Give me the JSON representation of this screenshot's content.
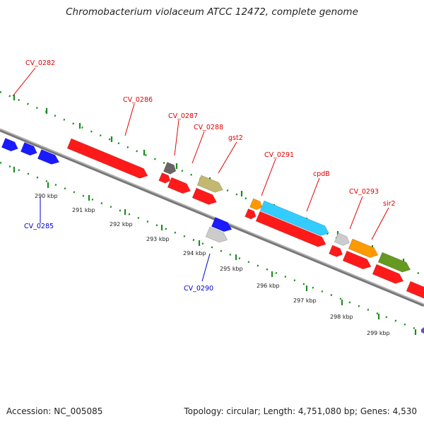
{
  "title": "Chromobacterium violaceum ATCC 12472, complete genome",
  "footer": {
    "accession": "Accession: NC_005085",
    "topology": "Topology: circular; Length: 4,751,080 bp; Genes: 4,530"
  },
  "colors": {
    "backbone": "#8c8c8c",
    "tick": "#1e8c1e",
    "forward_label": "#e00000",
    "reverse_label": "#0000cc",
    "red": "#ff1a1a",
    "blue": "#1a1aff",
    "orange": "#ff9900",
    "cyan": "#33ccff",
    "olive": "#669922",
    "khaki": "#c2b870",
    "lightgray": "#cccccc",
    "darkgray": "#666666"
  },
  "scale": {
    "unit": "kbp",
    "tick_labels": [
      "290 kbp",
      "291 kbp",
      "292 kbp",
      "293 kbp",
      "294 kbp",
      "295 kbp",
      "296 kbp",
      "297 kbp",
      "298 kbp",
      "299 kbp"
    ]
  },
  "forward_labels": [
    "CV_0282",
    "CV_0286",
    "CV_0287",
    "CV_0288",
    "gst2",
    "CV_0291",
    "cpdB",
    "CV_0293",
    "sir2"
  ],
  "reverse_labels": [
    "CV_0285",
    "CV_0290"
  ]
}
